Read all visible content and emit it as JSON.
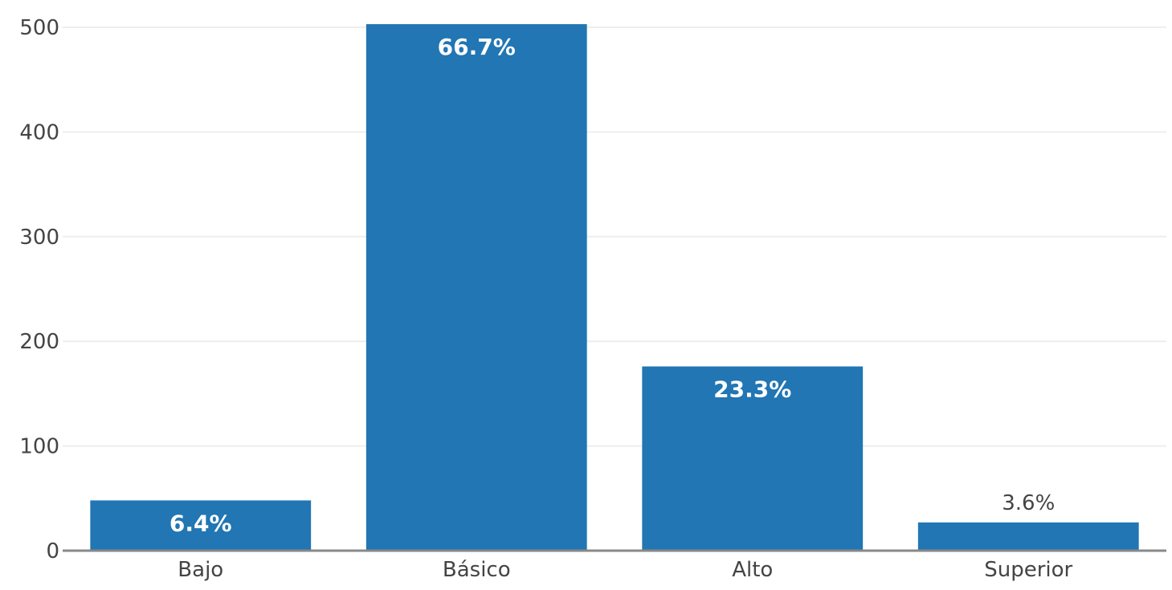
{
  "chart_data": {
    "type": "bar",
    "categories": [
      "Bajo",
      "Básico",
      "Alto",
      "Superior"
    ],
    "values": [
      48,
      503,
      176,
      27
    ],
    "data_labels": [
      "6.4%",
      "66.7%",
      "23.3%",
      "3.6%"
    ],
    "label_position": [
      "inside",
      "inside",
      "inside",
      "outside"
    ],
    "ylim": [
      0,
      500
    ],
    "yticks": [
      0,
      100,
      200,
      300,
      400,
      500
    ],
    "grid": true,
    "bar_color": "#2176b3",
    "axis_color": "#888888",
    "grid_color": "#eeeeee",
    "title": "",
    "xlabel": "",
    "ylabel": ""
  }
}
